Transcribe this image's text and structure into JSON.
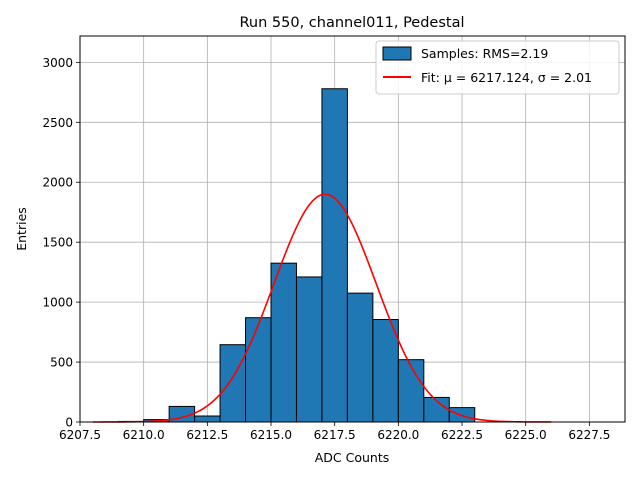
{
  "chart_data": {
    "type": "bar",
    "title": "Run 550, channel011, Pedestal",
    "xlabel": "ADC Counts",
    "ylabel": "Entries",
    "xlim": [
      6207.5,
      6228.9
    ],
    "ylim": [
      0,
      3220
    ],
    "grid": true,
    "legend_position": "top-right",
    "x_ticks": [
      6207.5,
      6210.0,
      6212.5,
      6215.0,
      6217.5,
      6220.0,
      6222.5,
      6225.0,
      6227.5
    ],
    "x_tick_labels": [
      "6207.5",
      "6210.0",
      "6212.5",
      "6215.0",
      "6217.5",
      "6220.0",
      "6222.5",
      "6225.0",
      "6227.5"
    ],
    "y_ticks": [
      0,
      500,
      1000,
      1500,
      2000,
      2500,
      3000
    ],
    "y_tick_labels": [
      "0",
      "500",
      "1000",
      "1500",
      "2000",
      "2500",
      "3000"
    ],
    "histogram": {
      "name": "Samples: RMS=2.19",
      "color": "#1f77b4",
      "edge_color": "#000000",
      "bin_edges": [
        6208.0,
        6209.0,
        6210.0,
        6211.0,
        6212.0,
        6213.0,
        6214.0,
        6215.0,
        6216.0,
        6217.0,
        6218.0,
        6219.0,
        6220.0,
        6221.0,
        6222.0,
        6223.0,
        6224.0,
        6225.0,
        6226.0,
        6227.0,
        6228.0
      ],
      "counts": [
        0,
        5,
        20,
        130,
        50,
        645,
        870,
        1325,
        1210,
        2780,
        1075,
        855,
        520,
        205,
        120,
        0,
        0,
        0,
        0,
        0
      ]
    },
    "fit": {
      "name": "Fit: μ = 6217.124, σ = 2.01",
      "color": "#ff0000",
      "mu": 6217.124,
      "sigma": 2.01,
      "amplitude": 1900,
      "x_range": [
        6208.0,
        6226.0
      ]
    }
  }
}
